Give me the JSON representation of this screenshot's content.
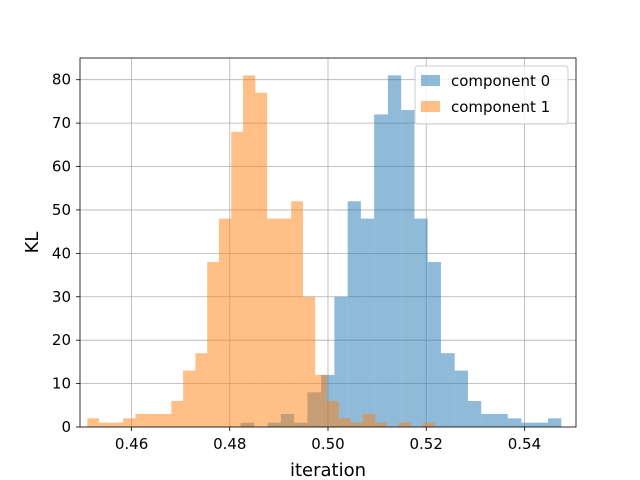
{
  "chart_data": {
    "type": "bar",
    "chart_kind": "histogram",
    "title": "",
    "xlabel": "iteration",
    "ylabel": "KL",
    "xlim": [
      0.4495,
      0.5505
    ],
    "ylim": [
      0,
      85
    ],
    "xticks": [
      0.46,
      0.48,
      0.5,
      0.52,
      0.54
    ],
    "xtick_labels": [
      "0.46",
      "0.48",
      "0.50",
      "0.52",
      "0.54"
    ],
    "yticks": [
      0,
      10,
      20,
      30,
      40,
      50,
      60,
      70,
      80
    ],
    "ytick_labels": [
      "0",
      "10",
      "20",
      "30",
      "40",
      "50",
      "60",
      "70",
      "80"
    ],
    "grid": true,
    "legend_position": "top-right",
    "series": [
      {
        "name": "component 0",
        "color": "#1f77b4",
        "alpha": 0.5,
        "bin_edges": [
          0.4822,
          0.485,
          0.4877,
          0.4904,
          0.4931,
          0.4958,
          0.4986,
          0.5013,
          0.504,
          0.5067,
          0.5094,
          0.5122,
          0.5149,
          0.5176,
          0.5203,
          0.523,
          0.5258,
          0.5285,
          0.5312,
          0.5339,
          0.5366,
          0.5394,
          0.5421,
          0.5448,
          0.5475
        ],
        "counts": [
          1,
          0,
          1,
          3,
          1,
          8,
          12,
          30,
          52,
          48,
          72,
          81,
          73,
          48,
          38,
          17,
          13,
          6,
          3,
          3,
          2,
          1,
          1,
          2
        ]
      },
      {
        "name": "component 1",
        "color": "#ff7f0e",
        "alpha": 0.5,
        "bin_edges": [
          0.451,
          0.4534,
          0.4559,
          0.4583,
          0.4608,
          0.4632,
          0.4656,
          0.4681,
          0.4705,
          0.473,
          0.4754,
          0.4778,
          0.4803,
          0.4827,
          0.4852,
          0.4876,
          0.49,
          0.4925,
          0.4949,
          0.4974,
          0.4998,
          0.5022,
          0.5047,
          0.5071,
          0.5096,
          0.512,
          0.5144,
          0.5169,
          0.5193,
          0.5218
        ],
        "counts": [
          2,
          1,
          1,
          2,
          3,
          3,
          3,
          6,
          13,
          17,
          38,
          48,
          68,
          81,
          77,
          48,
          48,
          52,
          30,
          12,
          6,
          2,
          1,
          3,
          1,
          0,
          1,
          0,
          1
        ]
      }
    ]
  }
}
